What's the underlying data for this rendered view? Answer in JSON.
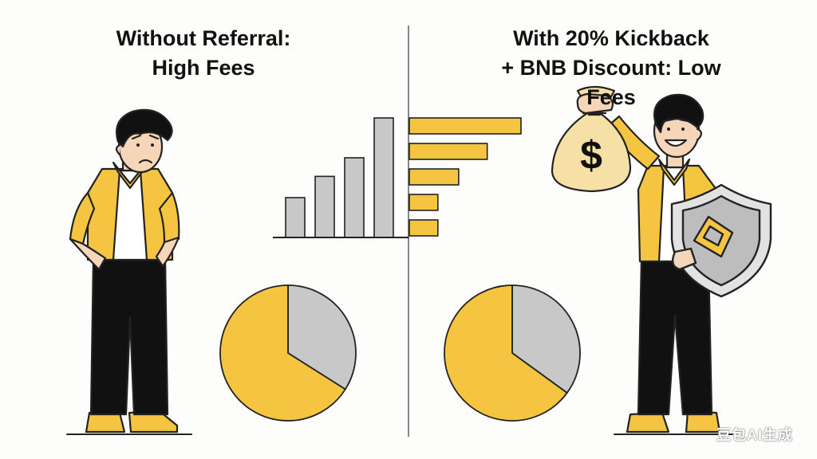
{
  "left_panel": {
    "title_line1": "Without Referral:",
    "title_line2": "High Fees"
  },
  "right_panel": {
    "title_line1": "With 20% Kickback",
    "title_line2": "+ BNB Discount: Low Fees",
    "bag_symbol": "$"
  },
  "watermark": "豆包AI生成",
  "colors": {
    "accent_yellow": "#f5c542",
    "gray": "#c8c8c8",
    "outline": "#222222"
  },
  "icons": [
    "worried-person",
    "happy-person",
    "money-bag-icon",
    "bnb-shield-icon"
  ],
  "chart_data": [
    {
      "type": "bar",
      "orientation": "vertical",
      "values": [
        1.5,
        2.3,
        3.0,
        4.5
      ],
      "ylim": [
        0,
        4.5
      ]
    },
    {
      "type": "bar",
      "orientation": "horizontal",
      "values": [
        4.3,
        3.0,
        1.9,
        1.1,
        1.1
      ],
      "xlim": [
        0,
        4.3
      ]
    },
    {
      "type": "pie",
      "slices": [
        {
          "value": 66,
          "color": "#f5c542"
        },
        {
          "value": 34,
          "color": "#c8c8c8"
        }
      ]
    },
    {
      "type": "pie",
      "slices": [
        {
          "value": 65,
          "color": "#f5c542"
        },
        {
          "value": 35,
          "color": "#c8c8c8"
        }
      ]
    }
  ]
}
